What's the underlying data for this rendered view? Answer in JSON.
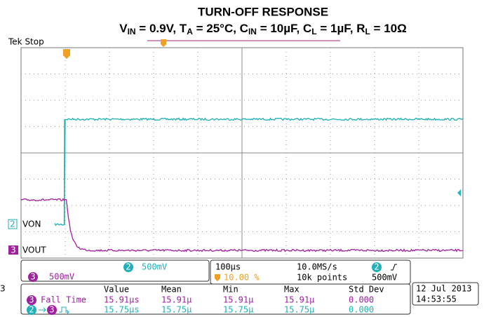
{
  "header": {
    "title": "TURN-OFF RESPONSE",
    "subtitle_parts": [
      "V",
      "IN",
      " = 0.9V, T",
      "A",
      " = 25°C, C",
      "IN",
      " = 10µF, C",
      "L",
      " = 1µF, R",
      "L",
      " = 10Ω"
    ]
  },
  "screen": {
    "status": "Tek Stop",
    "ch2_label": "VON",
    "ch3_label": "VOUT",
    "ch2_number": "2",
    "ch3_number": "3",
    "edge_number": "3"
  },
  "settings": {
    "ch3_number": "3",
    "ch3_scale": "500mV",
    "ch2_number": "2",
    "ch2_scale": "500mV",
    "timebase": "100µs",
    "sample_rate": "10.0MS/s",
    "trigger_channel": "2",
    "trigger_level": "500mV",
    "trigger_position": "10.00 %",
    "record_length": "10k points"
  },
  "measurements": {
    "columns": [
      "Value",
      "Mean",
      "Min",
      "Max",
      "Std Dev"
    ],
    "rows": [
      {
        "channel": "3",
        "label": "Fall Time",
        "values": [
          "15.91µs",
          "15.91µ",
          "15.91µ",
          "15.91µ",
          "0.000"
        ]
      },
      {
        "channel_from": "2",
        "channel_to": "3",
        "values": [
          "15.75µs",
          "15.75µ",
          "15.75µ",
          "15.75µ",
          "0.000"
        ]
      }
    ]
  },
  "timestamp": {
    "date": "12 Jul  2013",
    "time": "14:53:55"
  }
}
